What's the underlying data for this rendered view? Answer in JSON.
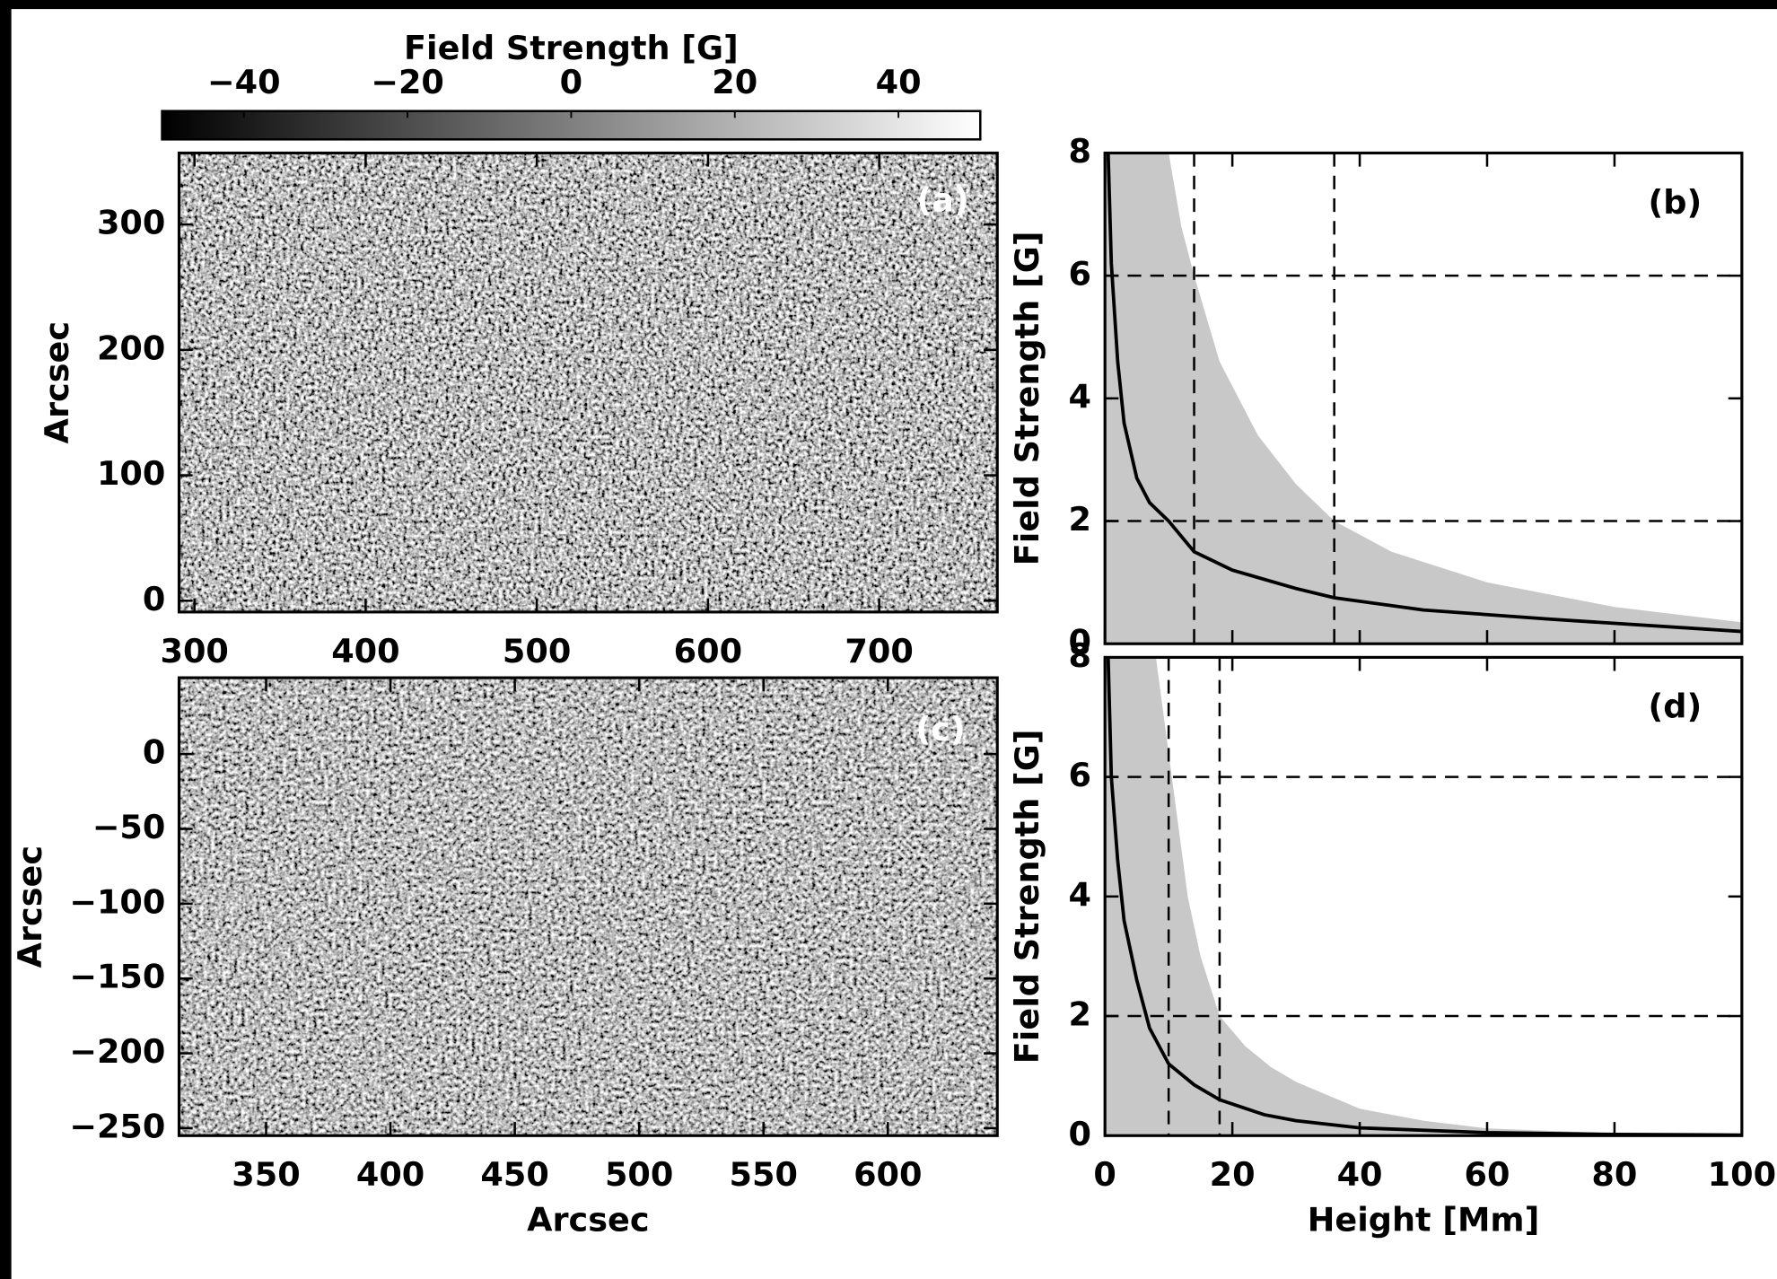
{
  "chart_data": [
    {
      "type": "colorbar",
      "title": "Field Strength [G]",
      "xlim": [
        -50,
        50
      ],
      "xticks": [
        {
          "value": -40,
          "label": "−40"
        },
        {
          "value": -20,
          "label": "−20"
        },
        0,
        20,
        40
      ],
      "colormap": [
        "#000000",
        "#ffffff"
      ]
    },
    {
      "type": "image",
      "panel_label": "(a)",
      "ylabel": "Arcsec",
      "xlim": [
        291,
        769
      ],
      "ylim": [
        -9,
        357
      ],
      "xticks": [
        300,
        400,
        500,
        600,
        700
      ],
      "yticks": [
        0,
        100,
        200,
        300
      ]
    },
    {
      "type": "line",
      "panel_label": "(b)",
      "ylabel": "Field Strength [G]",
      "xlim": [
        0,
        100
      ],
      "ylim": [
        0,
        8
      ],
      "xticks": [
        0,
        20,
        40,
        60,
        80,
        100
      ],
      "xtick_labels": false,
      "yticks": [
        0,
        2,
        4,
        6,
        8
      ],
      "x": [
        0.5,
        1,
        2,
        3,
        5,
        7,
        10,
        14,
        20,
        30,
        36,
        50,
        70,
        100
      ],
      "series": [
        {
          "color": "#000000",
          "values": [
            8,
            6.2,
            4.6,
            3.6,
            2.7,
            2.3,
            2.0,
            1.5,
            1.2,
            0.9,
            0.75,
            0.55,
            0.4,
            0.2
          ]
        }
      ],
      "band": {
        "color": "#c8c8c8",
        "x": [
          10,
          12,
          14,
          18,
          24,
          30,
          36,
          45,
          60,
          80,
          100
        ],
        "upper": [
          8,
          6.8,
          6,
          4.6,
          3.4,
          2.6,
          2,
          1.5,
          1.0,
          0.6,
          0.35
        ]
      },
      "reference_lines": {
        "x": [
          14,
          36
        ],
        "y": [
          2,
          6
        ]
      }
    },
    {
      "type": "image",
      "panel_label": "(c)",
      "xlabel": "Arcsec",
      "ylabel": "Arcsec",
      "xlim": [
        315,
        644
      ],
      "ylim": [
        -255,
        51
      ],
      "xticks": [
        350,
        400,
        450,
        500,
        550,
        600
      ],
      "yticks": [
        0,
        {
          "value": -50,
          "label": "−50"
        },
        {
          "value": -100,
          "label": "−100"
        },
        {
          "value": -150,
          "label": "−150"
        },
        {
          "value": -200,
          "label": "−200"
        },
        {
          "value": -250,
          "label": "−250"
        }
      ]
    },
    {
      "type": "line",
      "panel_label": "(d)",
      "xlabel": "Height [Mm]",
      "ylabel": "Field Strength [G]",
      "xlim": [
        0,
        100
      ],
      "ylim": [
        0,
        8
      ],
      "xticks": [
        0,
        20,
        40,
        60,
        80,
        100
      ],
      "xtick_labels": true,
      "yticks": [
        0,
        2,
        4,
        6,
        8
      ],
      "x": [
        0.5,
        1,
        2,
        3,
        5,
        7,
        10,
        14,
        18,
        25,
        30,
        40,
        60,
        80,
        100
      ],
      "series": [
        {
          "color": "#000000",
          "values": [
            8,
            6,
            4.6,
            3.6,
            2.6,
            1.8,
            1.2,
            0.85,
            0.6,
            0.35,
            0.25,
            0.13,
            0.05,
            0.02,
            0.01
          ]
        }
      ],
      "band": {
        "color": "#c8c8c8",
        "x": [
          8,
          10.5,
          13,
          15,
          18,
          22,
          26,
          30,
          40,
          50,
          60,
          80,
          100
        ],
        "upper": [
          8,
          6,
          4,
          3,
          2,
          1.5,
          1.15,
          0.9,
          0.45,
          0.25,
          0.12,
          0.04,
          0.02
        ]
      },
      "reference_lines": {
        "x": [
          10,
          18
        ],
        "y": [
          2,
          6
        ]
      }
    }
  ]
}
